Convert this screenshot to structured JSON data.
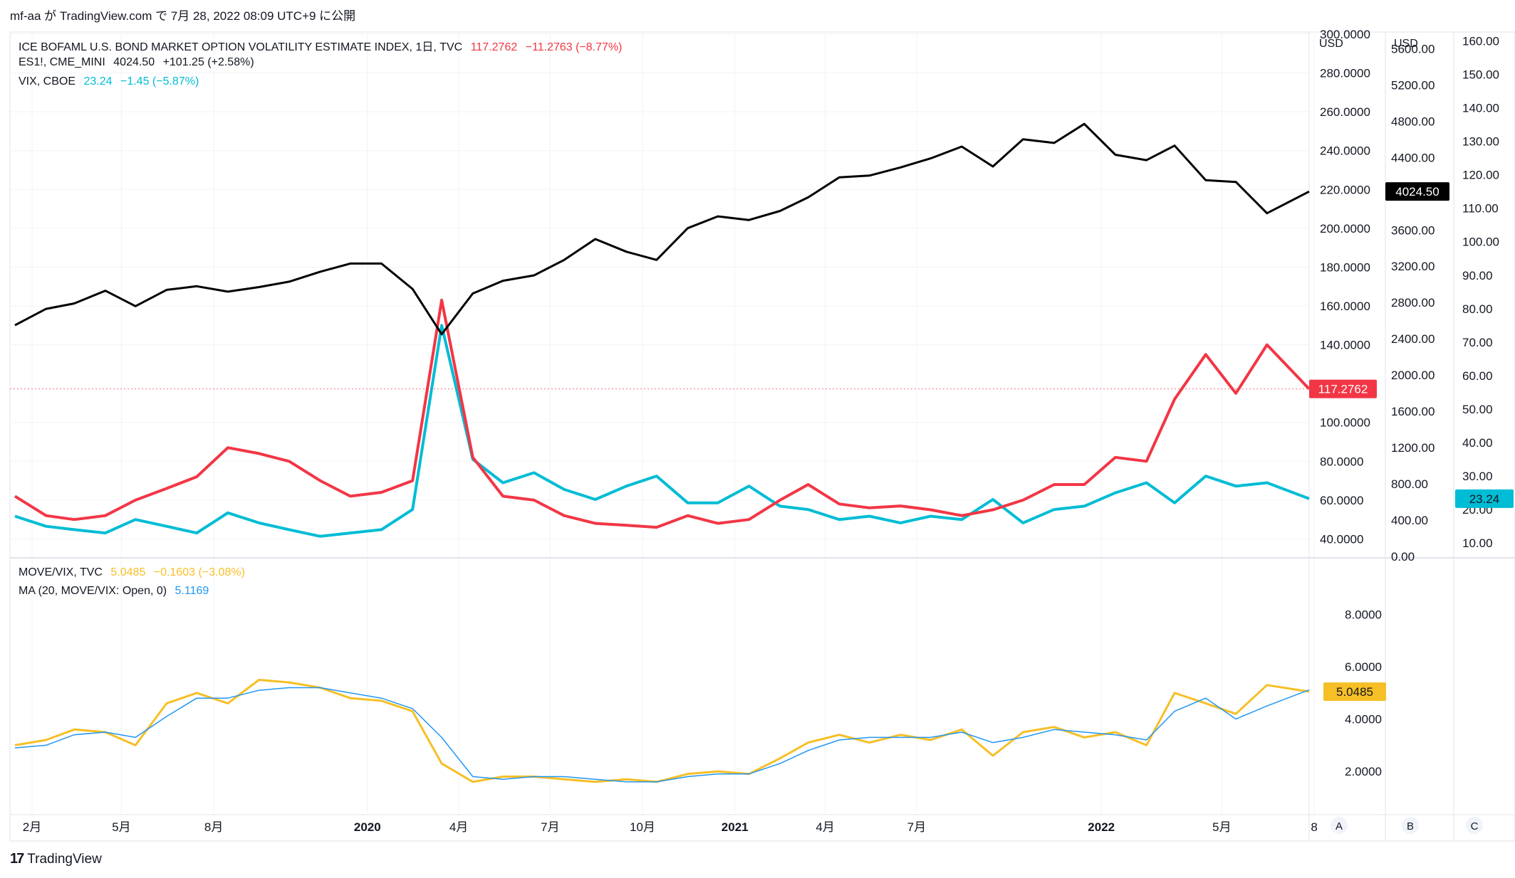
{
  "attribution": "mf-aa が TradingView.com で 7月 28, 2022 08:09 UTC+9 に公開",
  "footer_logo": "TradingView",
  "colors": {
    "move": "#f23645",
    "es": "#000000",
    "vix": "#00bcd4",
    "ratio": "#f7bf26",
    "ma": "#2196f3",
    "grid": "#f0f3fa",
    "axis_text": "#131722"
  },
  "legend_top": {
    "move": {
      "name": "ICE BOFAML U.S. BOND MARKET OPTION VOLATILITY ESTIMATE INDEX, 1日, TVC",
      "last": "117.2762",
      "change": "−11.2763 (−8.77%)"
    },
    "es": {
      "name": "ES1!, CME_MINI",
      "last": "4024.50",
      "change": "+101.25 (+2.58%)"
    },
    "vix": {
      "name": "VIX, CBOE",
      "last": "23.24",
      "change": "−1.45 (−5.87%)"
    }
  },
  "legend_bottom": {
    "ratio": {
      "name": "MOVE/VIX, TVC",
      "last": "5.0485",
      "change": "−0.1603 (−3.08%)"
    },
    "ma": {
      "name": "MA (20, MOVE/VIX: Open, 0)",
      "last": "5.1169"
    }
  },
  "axes": {
    "move_axis_ticks": [
      "300.0000",
      "280.0000",
      "260.0000",
      "240.0000",
      "220.0000",
      "200.0000",
      "180.0000",
      "160.0000",
      "140.0000",
      "100.0000",
      "80.0000",
      "60.0000",
      "40.0000"
    ],
    "es_axis_currency": "USD",
    "es_axis_ticks": [
      "5600.00",
      "5200.00",
      "4800.00",
      "4400.00",
      "3600.00",
      "3200.00",
      "2800.00",
      "2400.00",
      "2000.00",
      "1600.00",
      "1200.00",
      "800.00",
      "400.00",
      "0.00"
    ],
    "vix_axis_currency": "USD",
    "vix_axis_ticks": [
      "160.00",
      "150.00",
      "140.00",
      "130.00",
      "120.00",
      "110.00",
      "100.00",
      "90.00",
      "80.00",
      "70.00",
      "60.00",
      "50.00",
      "40.00",
      "30.00",
      "20.00",
      "10.00"
    ],
    "ratio_axis_ticks": [
      "8.0000",
      "6.0000",
      "4.0000",
      "2.0000"
    ],
    "time_ticks": [
      "2月",
      "5月",
      "8月",
      "2020",
      "4月",
      "7月",
      "10月",
      "2021",
      "4月",
      "7月",
      "2022",
      "5月",
      "8"
    ],
    "scale_buttons": [
      "A",
      "B",
      "C"
    ]
  },
  "price_tags": {
    "move": "117.2762",
    "es": "4024.50",
    "vix": "23.24",
    "ratio": "5.0485"
  },
  "chart_data": [
    {
      "type": "line",
      "title": "ICE BOFAML U.S. BOND MARKET OPTION VOLATILITY ESTIMATE INDEX / ES1! / VIX",
      "x": [
        "2019-01",
        "2019-02",
        "2019-03",
        "2019-04",
        "2019-05",
        "2019-06",
        "2019-07",
        "2019-08",
        "2019-09",
        "2019-10",
        "2019-11",
        "2019-12",
        "2020-01",
        "2020-02",
        "2020-03",
        "2020-04",
        "2020-05",
        "2020-06",
        "2020-07",
        "2020-08",
        "2020-09",
        "2020-10",
        "2020-11",
        "2020-12",
        "2021-01",
        "2021-02",
        "2021-03",
        "2021-04",
        "2021-05",
        "2021-06",
        "2021-07",
        "2021-08",
        "2021-09",
        "2021-10",
        "2021-11",
        "2021-12",
        "2022-01",
        "2022-02",
        "2022-03",
        "2022-04",
        "2022-05",
        "2022-06",
        "2022-07"
      ],
      "series": [
        {
          "name": "ICE BOFAML U.S. BOND MARKET OPTION VOLATILITY ESTIMATE INDEX",
          "axis": "move",
          "values": [
            62,
            52,
            50,
            52,
            60,
            66,
            72,
            87,
            84,
            80,
            70,
            62,
            64,
            70,
            163,
            82,
            62,
            60,
            52,
            48,
            47,
            46,
            52,
            48,
            50,
            60,
            68,
            58,
            56,
            57,
            55,
            52,
            55,
            60,
            68,
            68,
            82,
            80,
            112,
            135,
            115,
            140,
            117.28
          ]
        },
        {
          "name": "ES1!, CME_MINI",
          "axis": "es",
          "values": [
            2550,
            2730,
            2790,
            2930,
            2760,
            2940,
            2980,
            2920,
            2970,
            3030,
            3140,
            3230,
            3230,
            2950,
            2450,
            2900,
            3040,
            3100,
            3270,
            3500,
            3360,
            3270,
            3620,
            3750,
            3710,
            3810,
            3960,
            4180,
            4200,
            4290,
            4390,
            4520,
            4300,
            4600,
            4560,
            4770,
            4430,
            4370,
            4530,
            4150,
            4130,
            3785,
            4024.5
          ]
        },
        {
          "name": "VIX, CBOE",
          "axis": "vix",
          "values": [
            18,
            15,
            14,
            13,
            17,
            15,
            13,
            19,
            16,
            14,
            12,
            13,
            14,
            20,
            75,
            35,
            28,
            31,
            26,
            23,
            27,
            30,
            22,
            22,
            27,
            21,
            20,
            17,
            18,
            16,
            18,
            17,
            23,
            16,
            20,
            21,
            25,
            28,
            22,
            30,
            27,
            28,
            23.24
          ]
        }
      ],
      "axes": {
        "move": {
          "ylim": [
            31,
            300
          ]
        },
        "es": {
          "ylim": [
            0,
            5760
          ],
          "currency": "USD"
        },
        "vix": {
          "ylim": [
            6,
            162
          ],
          "currency": "USD"
        }
      },
      "grid": true
    },
    {
      "type": "line",
      "title": "MOVE/VIX, TVC",
      "x": [
        "2019-01",
        "2019-02",
        "2019-03",
        "2019-04",
        "2019-05",
        "2019-06",
        "2019-07",
        "2019-08",
        "2019-09",
        "2019-10",
        "2019-11",
        "2019-12",
        "2020-01",
        "2020-02",
        "2020-03",
        "2020-04",
        "2020-05",
        "2020-06",
        "2020-07",
        "2020-08",
        "2020-09",
        "2020-10",
        "2020-11",
        "2020-12",
        "2021-01",
        "2021-02",
        "2021-03",
        "2021-04",
        "2021-05",
        "2021-06",
        "2021-07",
        "2021-08",
        "2021-09",
        "2021-10",
        "2021-11",
        "2021-12",
        "2022-01",
        "2022-02",
        "2022-03",
        "2022-04",
        "2022-05",
        "2022-06",
        "2022-07"
      ],
      "series": [
        {
          "name": "MOVE/VIX, TVC",
          "values": [
            3.0,
            3.2,
            3.6,
            3.5,
            3.0,
            4.6,
            5.0,
            4.6,
            5.5,
            5.4,
            5.2,
            4.8,
            4.7,
            4.3,
            2.3,
            1.6,
            1.8,
            1.8,
            1.7,
            1.6,
            1.7,
            1.6,
            1.9,
            2.0,
            1.9,
            2.5,
            3.1,
            3.4,
            3.1,
            3.4,
            3.2,
            3.6,
            2.6,
            3.5,
            3.7,
            3.3,
            3.5,
            3.0,
            5.0,
            4.6,
            4.2,
            5.3,
            5.0485
          ]
        },
        {
          "name": "MA (20, MOVE/VIX: Open, 0)",
          "values": [
            2.9,
            3.0,
            3.4,
            3.5,
            3.3,
            4.1,
            4.8,
            4.8,
            5.1,
            5.2,
            5.2,
            5.0,
            4.8,
            4.4,
            3.3,
            1.8,
            1.7,
            1.8,
            1.8,
            1.7,
            1.6,
            1.6,
            1.8,
            1.9,
            1.9,
            2.3,
            2.8,
            3.2,
            3.3,
            3.3,
            3.3,
            3.5,
            3.1,
            3.3,
            3.6,
            3.5,
            3.4,
            3.2,
            4.3,
            4.8,
            4.0,
            4.5,
            5.1169
          ]
        }
      ],
      "ylim": [
        0.4,
        10.0
      ],
      "grid": true
    }
  ]
}
